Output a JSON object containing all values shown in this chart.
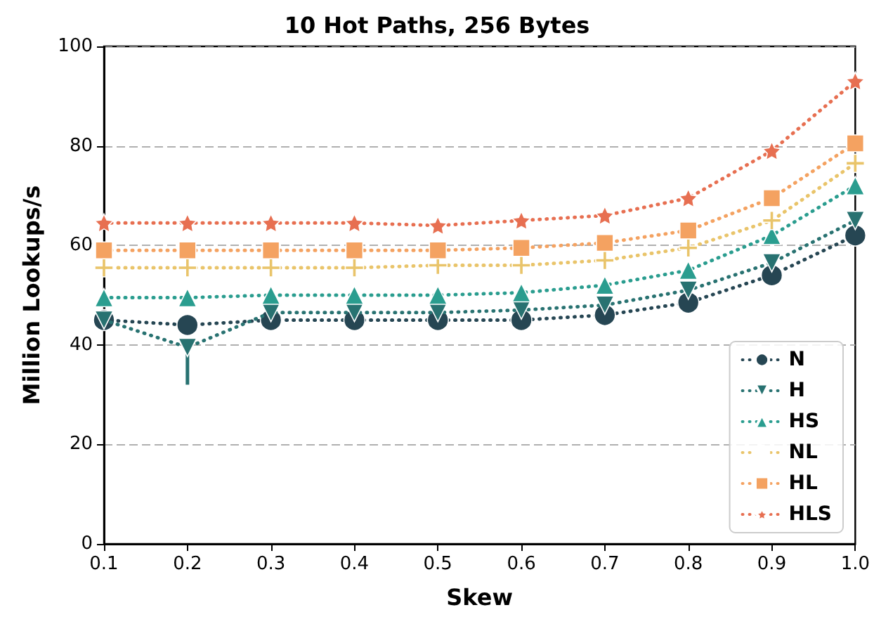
{
  "chart_data": {
    "type": "line",
    "title": "10 Hot Paths, 256 Bytes",
    "xlabel": "Skew",
    "ylabel": "Million Lookups/s",
    "x": [
      0.1,
      0.2,
      0.3,
      0.4,
      0.5,
      0.6,
      0.7,
      0.8,
      0.9,
      1.0
    ],
    "series": [
      {
        "name": "N",
        "color": "#264653",
        "marker": "circle",
        "values": [
          45,
          44,
          45,
          45,
          45,
          45,
          46,
          48.5,
          54,
          62
        ]
      },
      {
        "name": "H",
        "color": "#287271",
        "marker": "triangle_down",
        "values": [
          45,
          39.5,
          46.5,
          46.5,
          46.5,
          47,
          48,
          51,
          56.5,
          65
        ],
        "errors": [
          null,
          [
            32,
            41
          ],
          null,
          null,
          null,
          null,
          null,
          null,
          null,
          null
        ]
      },
      {
        "name": "HS",
        "color": "#2a9d8f",
        "marker": "triangle",
        "values": [
          49.5,
          49.5,
          50,
          50,
          50,
          50.5,
          52,
          55,
          62,
          72
        ]
      },
      {
        "name": "NL",
        "color": "#e9c46a",
        "marker": "cross",
        "values": [
          55.5,
          55.5,
          55.5,
          55.5,
          56,
          56,
          57,
          59.5,
          65,
          76.5
        ]
      },
      {
        "name": "HL",
        "color": "#f4a261",
        "marker": "square",
        "values": [
          59,
          59,
          59,
          59,
          59,
          59.5,
          60.5,
          63,
          69.5,
          80.5
        ]
      },
      {
        "name": "HLS",
        "color": "#e76f51",
        "marker": "star",
        "values": [
          64.5,
          64.5,
          64.5,
          64.5,
          64,
          65,
          66,
          69.5,
          79,
          93
        ]
      }
    ],
    "xlim": [
      0.1,
      1.0
    ],
    "xticks": [
      0.1,
      0.2,
      0.3,
      0.4,
      0.5,
      0.6,
      0.7,
      0.8,
      0.9,
      {
        "value": 1.0,
        "label": "1.0"
      }
    ],
    "ylim": [
      0,
      100
    ],
    "yticks": [
      0,
      20,
      40,
      60,
      80,
      100
    ],
    "grid": "y",
    "legend": "bottom right",
    "line_style": "dotted"
  }
}
